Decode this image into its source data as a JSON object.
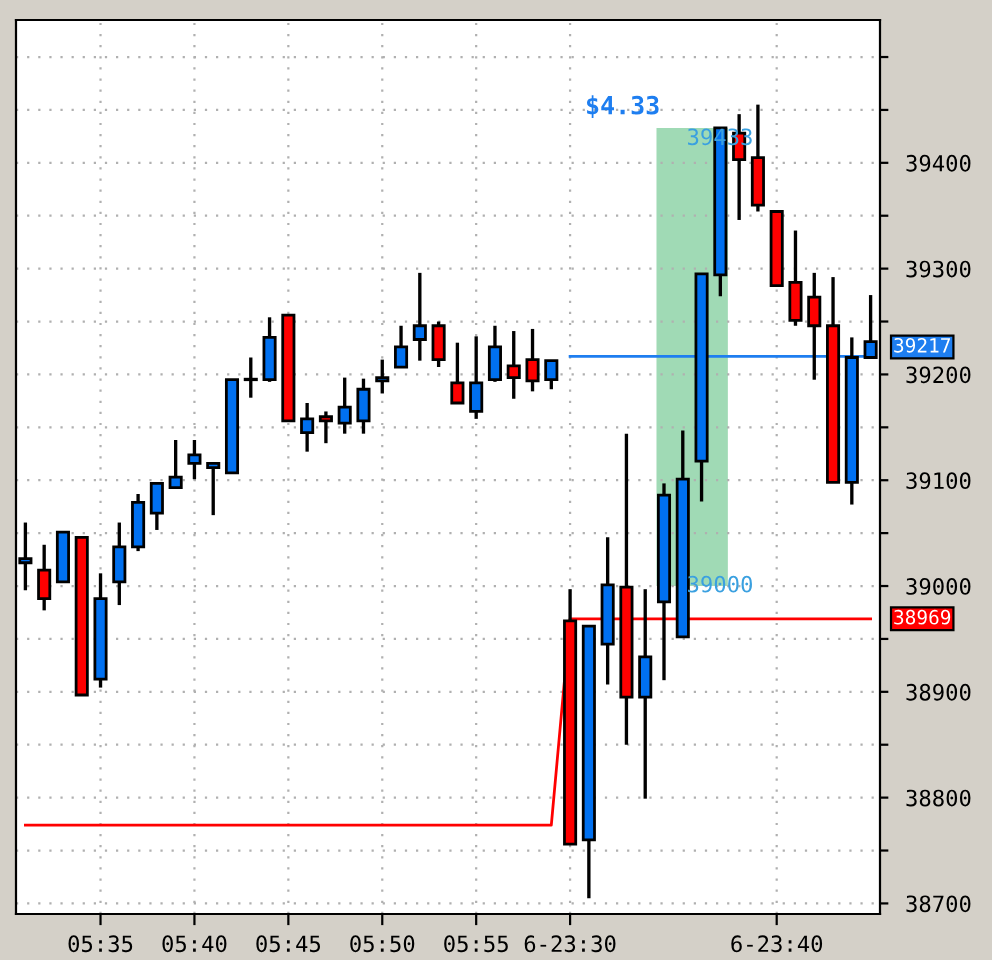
{
  "chart_data": {
    "type": "candlestick",
    "categories": [
      null,
      null,
      null,
      null,
      "05:35",
      null,
      null,
      null,
      null,
      "05:40",
      null,
      null,
      null,
      null,
      "05:45",
      null,
      null,
      null,
      null,
      "05:50",
      null,
      null,
      null,
      null,
      "05:55",
      null,
      null,
      null,
      null,
      "6-23:30",
      null,
      null,
      null,
      null,
      null,
      null,
      null,
      null,
      null,
      null,
      "6-23:40",
      null,
      null,
      null,
      null,
      null
    ],
    "ohlc": [
      [
        39022,
        39060,
        38996,
        39026
      ],
      [
        39015,
        39039,
        38977,
        38988
      ],
      [
        39004,
        39052,
        39004,
        39051
      ],
      [
        39046,
        39046,
        38897,
        38897
      ],
      [
        38912,
        39012,
        38904,
        38988
      ],
      [
        39004,
        39060,
        38982,
        39037
      ],
      [
        39037,
        39087,
        39033,
        39079
      ],
      [
        39069,
        39097,
        39053,
        39097
      ],
      [
        39093,
        39138,
        39093,
        39103
      ],
      [
        39116,
        39138,
        39101,
        39124
      ],
      [
        39112,
        39116,
        39067,
        39116
      ],
      [
        39107,
        39195,
        39107,
        39195
      ],
      [
        39195,
        39216,
        39178,
        39195
      ],
      [
        39195,
        39254,
        39193,
        39235
      ],
      [
        39256,
        39256,
        39156,
        39156
      ],
      [
        39145,
        39173,
        39127,
        39158
      ],
      [
        39160,
        39165,
        39135,
        39156
      ],
      [
        39154,
        39197,
        39144,
        39169
      ],
      [
        39156,
        39196,
        39144,
        39186
      ],
      [
        39194,
        39214,
        39182,
        39197
      ],
      [
        39207,
        39246,
        39207,
        39226
      ],
      [
        39233,
        39296,
        39213,
        39246
      ],
      [
        39246,
        39250,
        39207,
        39214
      ],
      [
        39192,
        39230,
        39173,
        39173
      ],
      [
        39165,
        39236,
        39158,
        39192
      ],
      [
        39195,
        39246,
        39193,
        39226
      ],
      [
        39208,
        39241,
        39177,
        39197
      ],
      [
        39214,
        39243,
        39184,
        39194
      ],
      [
        39195,
        39213,
        39186,
        39213
      ],
      [
        38967,
        38997,
        38756,
        38756
      ],
      [
        38760,
        38962,
        38705,
        38962
      ],
      [
        38945,
        39046,
        38907,
        39001
      ],
      [
        38999,
        39144,
        38850,
        38895
      ],
      [
        38895,
        38997,
        38799,
        38933
      ],
      [
        38985,
        39097,
        38911,
        39086
      ],
      [
        38952,
        39147,
        38952,
        39101
      ],
      [
        39118,
        39295,
        39080,
        39295
      ],
      [
        39294,
        39433,
        39274,
        39433
      ],
      [
        39428,
        39446,
        39346,
        39403
      ],
      [
        39405,
        39455,
        39354,
        39360
      ],
      [
        39354,
        39354,
        39284,
        39284
      ],
      [
        39287,
        39336,
        39246,
        39251
      ],
      [
        39273,
        39296,
        39195,
        39246
      ],
      [
        39246,
        39292,
        39098,
        39098
      ],
      [
        39098,
        39235,
        39077,
        39216
      ],
      [
        39216,
        39275,
        39216,
        39231
      ]
    ],
    "colors": [
      "#0070f0",
      "#ff0000",
      "#0070f0",
      "#ff0000",
      "#0070f0",
      "#0070f0",
      "#0070f0",
      "#0070f0",
      "#0070f0",
      "#0070f0",
      "#0070f0",
      "#0070f0",
      "#0070f0",
      "#0070f0",
      "#ff0000",
      "#0070f0",
      "#ff0000",
      "#0070f0",
      "#0070f0",
      "#0070f0",
      "#0070f0",
      "#0070f0",
      "#ff0000",
      "#ff0000",
      "#0070f0",
      "#0070f0",
      "#ff0000",
      "#ff0000",
      "#0070f0",
      "#ff0000",
      "#0070f0",
      "#0070f0",
      "#ff0000",
      "#0070f0",
      "#0070f0",
      "#0070f0",
      "#0070f0",
      "#0070f0",
      "#ff0000",
      "#ff0000",
      "#ff0000",
      "#ff0000",
      "#ff0000",
      "#ff0000",
      "#0070f0",
      "#0070f0"
    ],
    "series": [
      {
        "type": "line",
        "color": "#ff0000",
        "values": [
          38774,
          38774,
          38774,
          38774,
          38774,
          38774,
          38774,
          38774,
          38774,
          38774,
          38774,
          38774,
          38774,
          38774,
          38774,
          38774,
          38774,
          38774,
          38774,
          38774,
          38774,
          38774,
          38774,
          38774,
          38774,
          38774,
          38774,
          38774,
          38774,
          38969,
          38969,
          38969,
          38969,
          38969,
          38969,
          38969,
          38969,
          38969,
          38969,
          38969,
          38969,
          38969,
          38969,
          38969,
          38969,
          38969
        ]
      },
      {
        "type": "line",
        "color": "#1e7ef0",
        "values": [
          null,
          null,
          null,
          null,
          null,
          null,
          null,
          null,
          null,
          null,
          null,
          null,
          null,
          null,
          null,
          null,
          null,
          null,
          null,
          null,
          null,
          null,
          null,
          null,
          null,
          null,
          null,
          null,
          null,
          39217,
          39217,
          39217,
          39217,
          39217,
          39217,
          39217,
          39217,
          39217,
          39217,
          39217,
          39217,
          39217,
          39217,
          39217,
          39217,
          39217
        ]
      }
    ],
    "bands": [
      {
        "axis": "y",
        "from": 39000,
        "to": 39433,
        "label": "$4.33",
        "color": "#8fd4a8"
      }
    ],
    "annotations": [
      {
        "text": "39433",
        "y": 39433
      },
      {
        "text": "39000",
        "y": 39000
      },
      "38969",
      "39217"
    ],
    "ylim": [
      38690,
      39535
    ],
    "yticks": [
      38700,
      {
        "value": 38750,
        "label": null
      },
      38800,
      {
        "value": 38850,
        "label": null
      },
      38900,
      {
        "value": 38950,
        "label": null
      },
      39000,
      {
        "value": 39050,
        "label": null
      },
      39100,
      {
        "value": 39150,
        "label": null
      },
      39200,
      {
        "value": 39250,
        "label": null
      },
      39300,
      {
        "value": 39350,
        "label": null
      },
      39400,
      {
        "value": 39450,
        "label": null
      },
      {
        "value": 39500,
        "label": null
      }
    ],
    "grid": true
  }
}
